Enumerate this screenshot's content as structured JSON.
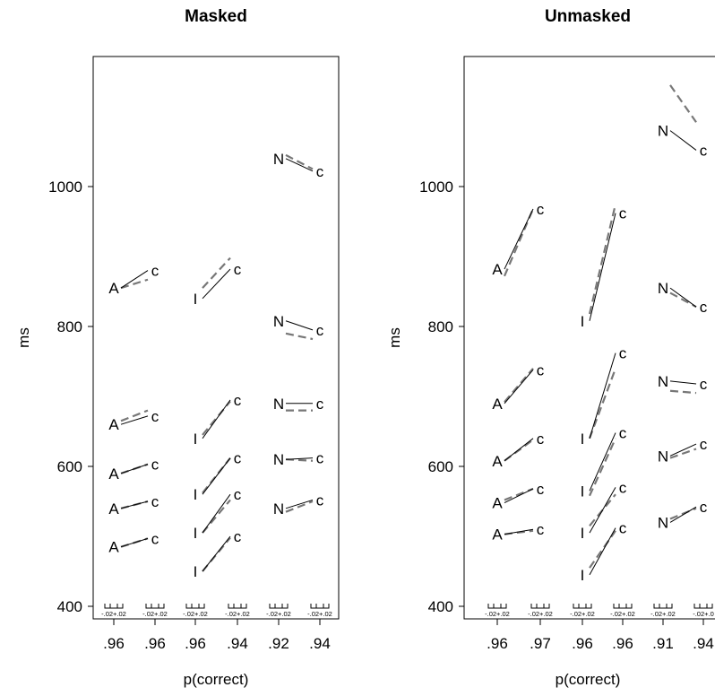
{
  "chart_data": [
    {
      "type": "line",
      "title": "Masked",
      "xlabel": "p(correct)",
      "ylabel": "ms",
      "ylim": [
        400,
        1170
      ],
      "yticks": [
        400,
        600,
        800,
        1000
      ],
      "x_tick_labels": [
        ".96",
        ".96",
        ".96",
        ".94",
        ".92",
        ".94"
      ],
      "accuracy_scale_labels": [
        "-.02+.02",
        "-.02+.02",
        "-.02+.02",
        "-.02+.02",
        "-.02+.02",
        "-.02+.02"
      ],
      "groups": [
        {
          "left_letter": "A",
          "right_letter": "c",
          "solid": [
            [
              485,
              497
            ],
            [
              540,
              550
            ],
            [
              590,
              603
            ],
            [
              660,
              672
            ],
            [
              855,
              880
            ]
          ],
          "dashed": [
            [
              485,
              497
            ],
            [
              540,
              550
            ],
            [
              590,
              603
            ],
            [
              665,
              680
            ],
            [
              855,
              867
            ]
          ]
        },
        {
          "left_letter": "I",
          "right_letter": "c",
          "solid": [
            [
              450,
              500
            ],
            [
              505,
              560
            ],
            [
              560,
              612
            ],
            [
              640,
              695
            ],
            [
              840,
              882
            ]
          ],
          "dashed": [
            [
              450,
              498
            ],
            [
              505,
              552
            ],
            [
              562,
              612
            ],
            [
              645,
              693
            ],
            [
              855,
              898
            ]
          ]
        },
        {
          "left_letter": "N",
          "right_letter": "c",
          "solid": [
            [
              540,
              552
            ],
            [
              610,
              612
            ],
            [
              690,
              690
            ],
            [
              808,
              795
            ],
            [
              1040,
              1022
            ]
          ],
          "dashed": [
            [
              535,
              550
            ],
            [
              610,
              608
            ],
            [
              680,
              680
            ],
            [
              790,
              782
            ],
            [
              1045,
              1025
            ]
          ]
        }
      ],
      "legend": "none",
      "grid": false
    },
    {
      "type": "line",
      "title": "Unmasked",
      "xlabel": "p(correct)",
      "ylabel": "ms",
      "ylim": [
        400,
        1170
      ],
      "yticks": [
        400,
        600,
        800,
        1000
      ],
      "x_tick_labels": [
        ".96",
        ".97",
        ".96",
        ".96",
        ".91",
        ".94"
      ],
      "accuracy_scale_labels": [
        "-.02+.02",
        "-.02+.02",
        "-.02+.02",
        "-.02+.02",
        "-.02+.02",
        "-.02+.0"
      ],
      "groups": [
        {
          "left_letter": "A",
          "right_letter": "c",
          "solid": [
            [
              503,
              510
            ],
            [
              548,
              568
            ],
            [
              608,
              640
            ],
            [
              690,
              738
            ],
            [
              882,
              968
            ]
          ],
          "dashed": [
            [
              503,
              508
            ],
            [
              552,
              568
            ],
            [
              608,
              638
            ],
            [
              692,
              740
            ],
            [
              872,
              968
            ]
          ]
        },
        {
          "left_letter": "I",
          "right_letter": "c",
          "solid": [
            [
              445,
              512
            ],
            [
              505,
              570
            ],
            [
              565,
              648
            ],
            [
              640,
              762
            ],
            [
              808,
              962
            ]
          ],
          "dashed": [
            [
              455,
              508
            ],
            [
              515,
              560
            ],
            [
              558,
              640
            ],
            [
              640,
              740
            ],
            [
              818,
              975
            ]
          ]
        },
        {
          "left_letter": "N",
          "right_letter": "c",
          "solid": [
            [
              520,
              542
            ],
            [
              615,
              632
            ],
            [
              722,
              718
            ],
            [
              855,
              828
            ],
            [
              1080,
              1052
            ]
          ],
          "dashed": [
            [
              525,
              540
            ],
            [
              612,
              625
            ],
            [
              708,
              705
            ],
            [
              848,
              828
            ],
            [
              1145,
              1092
            ]
          ]
        }
      ],
      "legend": "none",
      "grid": false
    }
  ]
}
